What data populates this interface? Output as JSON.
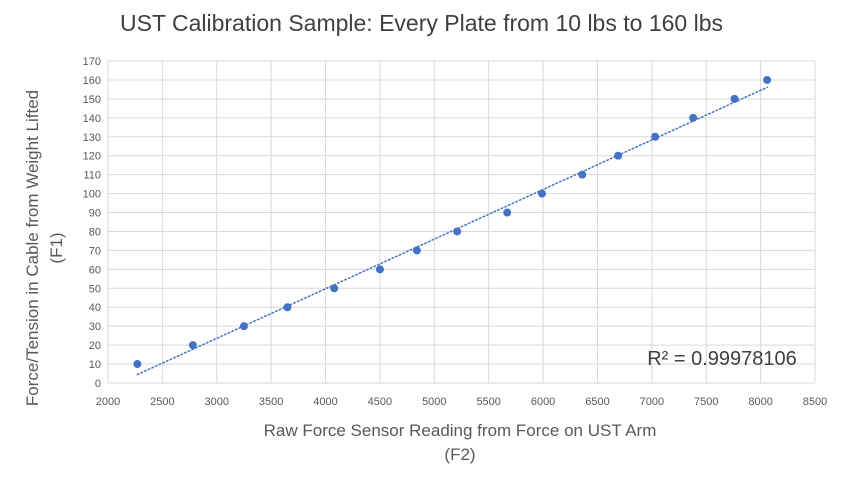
{
  "chart_data": {
    "type": "scatter",
    "title": "UST Calibration Sample: Every Plate from 10 lbs to 160 lbs",
    "xlabel": [
      "Raw Force Sensor Reading from Force on UST Arm",
      "(F2)"
    ],
    "ylabel": [
      "Force/Tension in Cable from Weight Lifted",
      "(F1)"
    ],
    "xlim": [
      2000,
      8500
    ],
    "ylim": [
      0,
      170
    ],
    "xticks": [
      2000,
      2500,
      3000,
      3500,
      4000,
      4500,
      5000,
      5500,
      6000,
      6500,
      7000,
      7500,
      8000,
      8500
    ],
    "yticks": [
      0,
      10,
      20,
      30,
      40,
      50,
      60,
      70,
      80,
      90,
      100,
      110,
      120,
      130,
      140,
      150,
      160,
      170
    ],
    "grid": true,
    "legend": "none",
    "trendline": {
      "type": "linear",
      "style": "dotted",
      "annotation": "R² = 0.99978106"
    },
    "marker_color": "#4472C4",
    "points": [
      {
        "x": 2270,
        "y": 10
      },
      {
        "x": 2780,
        "y": 20
      },
      {
        "x": 3250,
        "y": 30
      },
      {
        "x": 3650,
        "y": 40
      },
      {
        "x": 4080,
        "y": 50
      },
      {
        "x": 4500,
        "y": 60
      },
      {
        "x": 4840,
        "y": 70
      },
      {
        "x": 5210,
        "y": 80
      },
      {
        "x": 5670,
        "y": 90
      },
      {
        "x": 5990,
        "y": 100
      },
      {
        "x": 6360,
        "y": 110
      },
      {
        "x": 6690,
        "y": 120
      },
      {
        "x": 7030,
        "y": 130
      },
      {
        "x": 7380,
        "y": 140
      },
      {
        "x": 7760,
        "y": 150
      },
      {
        "x": 8060,
        "y": 160
      }
    ]
  }
}
